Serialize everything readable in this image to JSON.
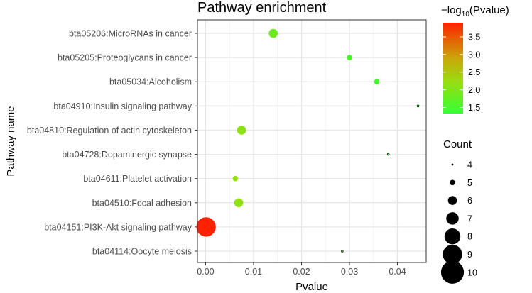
{
  "chart_data": {
    "type": "scatter",
    "title": "Pathway enrichment",
    "xlabel": "Pvalue",
    "ylabel": "Pathway name",
    "xlim": [
      -0.0017,
      0.046
    ],
    "xticks": [
      0.0,
      0.01,
      0.02,
      0.03,
      0.04
    ],
    "xtick_labels": [
      "0.00",
      "0.01",
      "0.02",
      "0.03",
      "0.04"
    ],
    "grid": true,
    "categories": [
      "bta05206:MicroRNAs in cancer",
      "bta05205:Proteoglycans in cancer",
      "bta05034:Alcoholism",
      "bta04910:Insulin signaling pathway",
      "bta04810:Regulation of actin cytoskeleton",
      "bta04728:Dopaminergic synapse",
      "bta04611:Platelet activation",
      "bta04510:Focal adhesion",
      "bta04151:PI3K-Akt signaling pathway",
      "bta04114:Oocyte meiosis"
    ],
    "points": [
      {
        "pathway": "bta05206:MicroRNAs in cancer",
        "pvalue": 0.0141,
        "count": 6,
        "neglog10p": 1.85
      },
      {
        "pathway": "bta05205:Proteoglycans in cancer",
        "pvalue": 0.03,
        "count": 5,
        "neglog10p": 1.52
      },
      {
        "pathway": "bta05034:Alcoholism",
        "pvalue": 0.0357,
        "count": 5,
        "neglog10p": 1.45
      },
      {
        "pathway": "bta04910:Insulin signaling pathway",
        "pvalue": 0.0443,
        "count": 4,
        "neglog10p": 1.35
      },
      {
        "pathway": "bta04810:Regulation of actin cytoskeleton",
        "pvalue": 0.0075,
        "count": 6,
        "neglog10p": 2.12
      },
      {
        "pathway": "bta04728:Dopaminergic synapse",
        "pvalue": 0.0381,
        "count": 4,
        "neglog10p": 1.42
      },
      {
        "pathway": "bta04611:Platelet activation",
        "pvalue": 0.0062,
        "count": 5,
        "neglog10p": 2.21
      },
      {
        "pathway": "bta04510:Focal adhesion",
        "pvalue": 0.0069,
        "count": 6,
        "neglog10p": 2.16
      },
      {
        "pathway": "bta04151:PI3K-Akt signaling pathway",
        "pvalue": 0.0001,
        "count": 9,
        "neglog10p": 3.9
      },
      {
        "pathway": "bta04114:Oocyte meiosis",
        "pvalue": 0.0285,
        "count": 4,
        "neglog10p": 1.55
      }
    ],
    "color_legend": {
      "title_prefix": "−log",
      "title_sub": "10",
      "title_suffix": "(Pvalue)",
      "range": [
        1.33,
        3.9
      ],
      "ticks": [
        1.5,
        2.0,
        2.5,
        3.0,
        3.5
      ],
      "tick_labels": [
        "1.5",
        "2.0",
        "2.5",
        "3.0",
        "3.5"
      ],
      "low_color": "#33ff33",
      "high_color": "#ff2200"
    },
    "size_legend": {
      "title": "Count",
      "values": [
        4,
        5,
        6,
        7,
        8,
        9,
        10
      ],
      "labels": [
        "4",
        "5",
        "6",
        "7",
        "8",
        "9",
        "10"
      ]
    }
  }
}
